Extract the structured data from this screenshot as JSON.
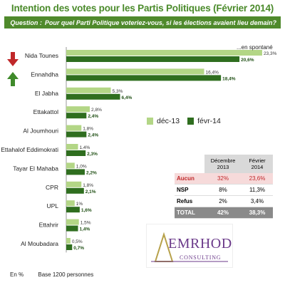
{
  "title": "Intention des votes pour les Partis Politiques (Février 2014)",
  "question": {
    "label": "Question :",
    "text": "Pour quel Parti Politique voteriez-vous, si les élections avaient lieu demain?"
  },
  "spontaneous_note": "...en spontané",
  "colors": {
    "dec13": "#b3d686",
    "fev14": "#2f6e1f",
    "header_green": "#4f8a2c",
    "down_arrow": "#c0282a",
    "up_arrow": "#3f8a2a"
  },
  "chart_data": {
    "type": "bar",
    "orientation": "horizontal",
    "categories": [
      "Nida Tounes",
      "Ennahdha",
      "El Jabha",
      "Ettakattol",
      "Al Joumhouri",
      "Ettahalof Eddimokrati",
      "Tayar El Mahaba",
      "CPR",
      "UPL",
      "Ettahrir",
      "Al Moubadara"
    ],
    "series": [
      {
        "name": "déc-13",
        "values": [
          23.3,
          16.4,
          5.3,
          2.8,
          1.8,
          1.4,
          1.0,
          1.8,
          1,
          1.5,
          0.5
        ],
        "labels": [
          "23,3%",
          "16,4%",
          "5,3%",
          "2,8%",
          "1,8%",
          "1,4%",
          "1,0%",
          "1,8%",
          "1%",
          "1,5%",
          "0,5%"
        ]
      },
      {
        "name": "févr-14",
        "values": [
          20.6,
          18.4,
          6.4,
          2.4,
          2.4,
          2.3,
          2.2,
          2.1,
          1.6,
          1.4,
          0.7
        ],
        "labels": [
          "20,6%",
          "18,4%",
          "6,4%",
          "2,4%",
          "2,4%",
          "2,3%",
          "2,2%",
          "2,1%",
          "1,6%",
          "1,4%",
          "0,7%"
        ]
      }
    ],
    "legend": [
      "déc-13",
      "févr-14"
    ],
    "legend_position": "right",
    "xlim": [
      0,
      25
    ],
    "grid": false
  },
  "trend_icons": [
    {
      "party": "Nida Tounes",
      "icon": "arrow-down-icon"
    },
    {
      "party": "Ennahdha",
      "icon": "arrow-up-icon"
    }
  ],
  "table": {
    "col_headers": [
      "Décembre 2013",
      "Février 2014"
    ],
    "rows": [
      {
        "label": "Aucun",
        "dec": "32%",
        "fev": "23,6%"
      },
      {
        "label": "NSP",
        "dec": "8%",
        "fev": "11,3%"
      },
      {
        "label": "Refus",
        "dec": "2%",
        "fev": "3,4%"
      },
      {
        "label": "TOTAL",
        "dec": "42%",
        "fev": "38,3%"
      }
    ]
  },
  "logo": {
    "name": "EMRHOD",
    "sub": "CONSULTING"
  },
  "footer": {
    "unit": "En %",
    "base": "Base 1200 personnes"
  }
}
